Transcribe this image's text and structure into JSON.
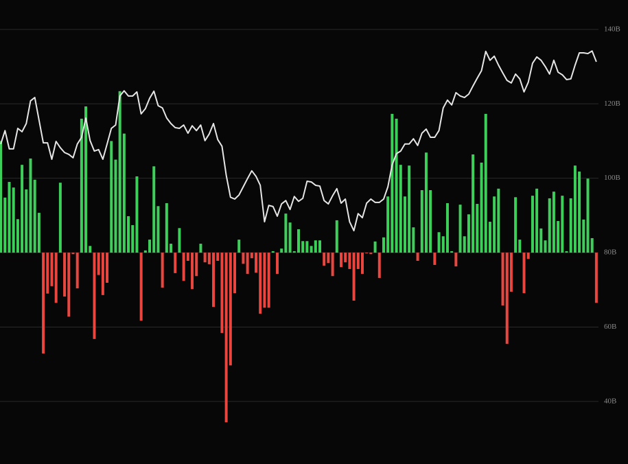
{
  "chart_data": {
    "type": "combo",
    "ylim": [
      23.2,
      147.9
    ],
    "yticks": [
      {
        "value": 140,
        "label": "140B"
      },
      {
        "value": 120,
        "label": "120B"
      },
      {
        "value": 100,
        "label": "100B"
      },
      {
        "value": 80,
        "label": "80B"
      },
      {
        "value": 60,
        "label": "60B"
      },
      {
        "value": 40,
        "label": "40B"
      }
    ],
    "grid": true,
    "baseline": 80,
    "bars": {
      "up_color": "#3ecf5a",
      "down_color": "#e8463f",
      "values": [
        110,
        94.8,
        99,
        97.5,
        89,
        103.6,
        97,
        105.3,
        99.6,
        90.7,
        52.9,
        69,
        71,
        66.5,
        98.8,
        68.2,
        62.8,
        79.6,
        70.4,
        116,
        119.3,
        81.8,
        56.8,
        74,
        68.6,
        71.9,
        110,
        105,
        123.4,
        112,
        89.8,
        87.4,
        100.5,
        61.7,
        80.6,
        83.5,
        103.2,
        92.5,
        70.6,
        93.3,
        82.4,
        74.5,
        86.6,
        72.4,
        77.8,
        70.2,
        73.7,
        82.4,
        77.4,
        76.9,
        65.4,
        77.8,
        58.4,
        34.4,
        49.7,
        69.1,
        83.5,
        77,
        74.3,
        78.5,
        74.6,
        63.6,
        65.2,
        65.2,
        80.4,
        74.3,
        81.1,
        90.5,
        88.1,
        80.4,
        86.3,
        83.1,
        83.1,
        81.8,
        83.3,
        83.3,
        76.5,
        77.2,
        73.7,
        88.7,
        76.1,
        77.4,
        75.6,
        67.1,
        75.6,
        74.3,
        79.8,
        79.6,
        83,
        73.2,
        84.1,
        95.1,
        117.3,
        116,
        103.6,
        95.1,
        103.4,
        86.8,
        77.8,
        96.8,
        106.9,
        96.8,
        76.7,
        85.5,
        84.4,
        93.3,
        80.4,
        76.3,
        92.9,
        84.4,
        90.3,
        106.4,
        93.1,
        104.2,
        117.3,
        88.3,
        95.1,
        97.2,
        65.8,
        55.5,
        69.5,
        94.9,
        83.5,
        69.1,
        78.3,
        95.3,
        97.2,
        86.5,
        83.3,
        94.6,
        96.4,
        88.5,
        95.3,
        80.4,
        94.6,
        103.4,
        101.8,
        88.9,
        99.9,
        83.9,
        66.5
      ]
    },
    "line": {
      "color": "#e6e6e6",
      "values": [
        109.2,
        112.8,
        107.9,
        107.9,
        113.4,
        112.5,
        114.7,
        120.8,
        121.7,
        115.6,
        109.5,
        109.5,
        105.1,
        109.9,
        108.2,
        106.9,
        106.4,
        105.5,
        109.2,
        111,
        116.2,
        110.1,
        107.3,
        107.7,
        105.1,
        109.2,
        113.4,
        114.3,
        122.1,
        123.5,
        122.1,
        122.1,
        123.2,
        117.3,
        118.7,
        121.5,
        123.4,
        119.5,
        118.9,
        116.2,
        114.7,
        113.6,
        113.4,
        114.3,
        112.1,
        114.1,
        112.8,
        114.3,
        110.1,
        111.9,
        114.7,
        110.4,
        108.6,
        100.8,
        94.9,
        94.4,
        95.5,
        97.7,
        99.9,
        102,
        100.5,
        98.1,
        88.3,
        92.7,
        92.4,
        89.8,
        93.1,
        94,
        91.6,
        95.1,
        93.8,
        94.6,
        99.2,
        99,
        98.1,
        97.9,
        94,
        93.1,
        95.3,
        97.2,
        93.3,
        94.4,
        88.3,
        85.9,
        90.5,
        89.4,
        93.3,
        94.4,
        93.5,
        93.5,
        94.4,
        97.7,
        103.6,
        106.6,
        107.3,
        109.2,
        109.2,
        110.6,
        108.8,
        112.1,
        113.2,
        111,
        111,
        112.8,
        118.9,
        121,
        119.7,
        123,
        122.1,
        121.7,
        122.6,
        124.8,
        126.9,
        128.9,
        134.1,
        131.7,
        132.8,
        130.4,
        128.3,
        126.3,
        125.6,
        128,
        126.7,
        123.2,
        125.8,
        130.9,
        132.6,
        131.7,
        130,
        128,
        131.7,
        128.5,
        127.8,
        126.5,
        126.7,
        130.4,
        133.7,
        133.7,
        133.5,
        134.2,
        131.3
      ]
    }
  }
}
